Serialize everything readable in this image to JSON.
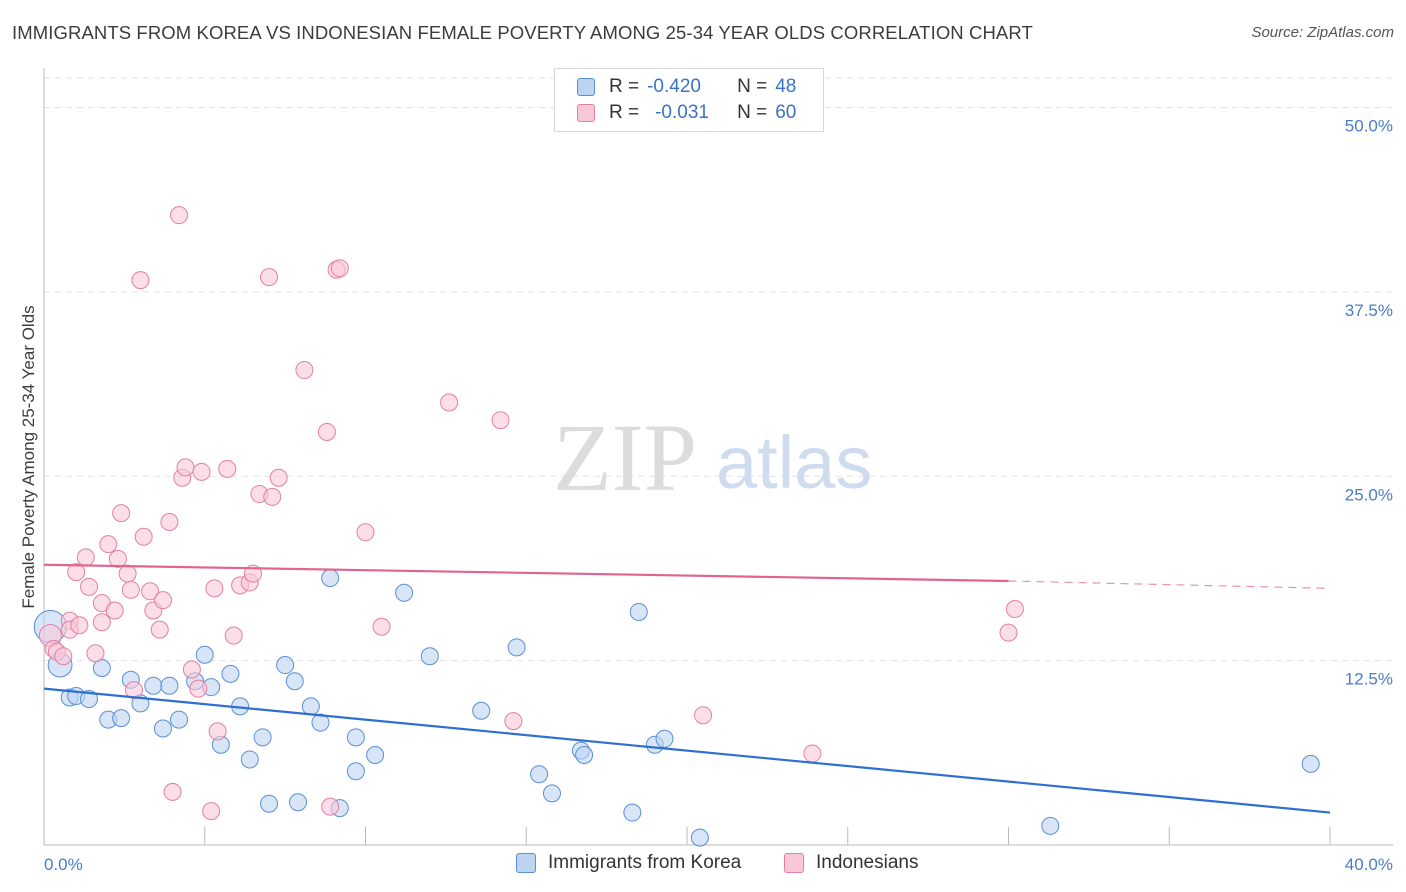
{
  "title": "IMMIGRANTS FROM KOREA VS INDONESIAN FEMALE POVERTY AMONG 25-34 YEAR OLDS CORRELATION CHART",
  "source": "Source: ZipAtlas.com",
  "watermark": {
    "zip": "ZIP",
    "atlas": "atlas"
  },
  "colors": {
    "blue_fill": "#bcd3f2",
    "blue_stroke": "#5a8fd6",
    "blue_line": "#2f6fd0",
    "pink_fill": "#f8c8d8",
    "pink_stroke": "#e47fa3",
    "pink_line": "#e0648f",
    "tick_text": "#4a7cc7",
    "grid": "#e2e2e2"
  },
  "legend": {
    "rows": [
      {
        "r_label": "R =",
        "r_value": "-0.420",
        "n_label": "N =",
        "n_value": "48"
      },
      {
        "r_label": "R =",
        "r_value": "-0.031",
        "n_label": "N =",
        "n_value": "60"
      }
    ]
  },
  "chart_data": {
    "type": "scatter",
    "title": "IMMIGRANTS FROM KOREA VS INDONESIAN FEMALE POVERTY AMONG 25-34 YEAR OLDS CORRELATION CHART",
    "xlabel": "",
    "ylabel": "Female Poverty Among 25-34 Year Olds",
    "xlim": [
      0,
      40
    ],
    "ylim": [
      0,
      52
    ],
    "x_tick_labels": [
      "0.0%",
      "40.0%"
    ],
    "y_ticks": [
      12.5,
      25.0,
      37.5,
      50.0
    ],
    "y_tick_labels": [
      "12.5%",
      "25.0%",
      "37.5%",
      "50.0%"
    ],
    "grid": "horizontal dashed",
    "series": [
      {
        "name": "Immigrants from Korea",
        "color": "blue",
        "r": -0.42,
        "n": 48,
        "trend": {
          "x0": 0,
          "y0": 10.6,
          "x1": 40,
          "y1": 2.2
        },
        "points": [
          [
            0.2,
            14.8,
            1.9
          ],
          [
            0.5,
            12.2,
            1.4
          ],
          [
            0.8,
            10.0,
            1
          ],
          [
            1.0,
            10.1,
            1
          ],
          [
            1.4,
            9.9,
            1
          ],
          [
            1.8,
            12.0,
            1
          ],
          [
            2.0,
            8.5,
            1
          ],
          [
            2.4,
            8.6,
            1
          ],
          [
            2.7,
            11.2,
            1
          ],
          [
            3.0,
            9.6,
            1
          ],
          [
            3.4,
            10.8,
            1
          ],
          [
            3.7,
            7.9,
            1
          ],
          [
            3.9,
            10.8,
            1
          ],
          [
            4.2,
            8.5,
            1
          ],
          [
            4.7,
            11.1,
            1
          ],
          [
            5.0,
            12.9,
            1
          ],
          [
            5.2,
            10.7,
            1
          ],
          [
            5.5,
            6.8,
            1
          ],
          [
            5.8,
            11.6,
            1
          ],
          [
            6.1,
            9.4,
            1
          ],
          [
            6.4,
            5.8,
            1
          ],
          [
            6.8,
            7.3,
            1
          ],
          [
            7.0,
            2.8,
            1
          ],
          [
            7.5,
            12.2,
            1
          ],
          [
            7.8,
            11.1,
            1
          ],
          [
            7.9,
            2.9,
            1
          ],
          [
            8.3,
            9.4,
            1
          ],
          [
            8.6,
            8.3,
            1
          ],
          [
            8.9,
            18.1,
            1
          ],
          [
            9.2,
            2.5,
            1
          ],
          [
            9.7,
            7.3,
            1
          ],
          [
            9.7,
            5.0,
            1
          ],
          [
            10.3,
            6.1,
            1
          ],
          [
            11.2,
            17.1,
            1
          ],
          [
            12.0,
            12.8,
            1
          ],
          [
            13.6,
            9.1,
            1
          ],
          [
            14.7,
            13.4,
            1
          ],
          [
            15.4,
            4.8,
            1
          ],
          [
            15.8,
            3.5,
            1
          ],
          [
            16.7,
            6.4,
            1
          ],
          [
            16.8,
            6.1,
            1
          ],
          [
            18.3,
            2.2,
            1
          ],
          [
            18.5,
            15.8,
            1
          ],
          [
            19.0,
            6.8,
            1
          ],
          [
            19.3,
            7.2,
            1
          ],
          [
            20.4,
            0.5,
            1
          ],
          [
            31.3,
            1.3,
            1
          ],
          [
            39.4,
            5.5,
            1
          ]
        ]
      },
      {
        "name": "Indonesians",
        "color": "pink",
        "r": -0.031,
        "n": 60,
        "trend": {
          "x0": 0,
          "y0": 19.0,
          "x1": 30,
          "y1": 17.9,
          "dash_x1": 40,
          "dash_y1": 17.4
        },
        "points": [
          [
            0.2,
            14.2,
            1.3
          ],
          [
            0.3,
            13.3,
            1
          ],
          [
            0.4,
            13.1,
            1
          ],
          [
            0.6,
            12.8,
            1
          ],
          [
            0.8,
            15.2,
            1
          ],
          [
            0.8,
            14.6,
            1
          ],
          [
            1.0,
            18.5,
            1
          ],
          [
            1.1,
            14.9,
            1
          ],
          [
            1.3,
            19.5,
            1
          ],
          [
            1.4,
            17.5,
            1
          ],
          [
            1.6,
            13.0,
            1
          ],
          [
            1.8,
            16.4,
            1
          ],
          [
            1.8,
            15.1,
            1
          ],
          [
            2.0,
            20.4,
            1
          ],
          [
            2.2,
            15.9,
            1
          ],
          [
            2.3,
            19.4,
            1
          ],
          [
            2.4,
            22.5,
            1
          ],
          [
            2.6,
            18.4,
            1
          ],
          [
            2.7,
            17.3,
            1
          ],
          [
            2.8,
            10.5,
            1
          ],
          [
            3.0,
            38.3,
            1
          ],
          [
            3.1,
            20.9,
            1
          ],
          [
            3.3,
            17.2,
            1
          ],
          [
            3.4,
            15.9,
            1
          ],
          [
            3.6,
            14.6,
            1
          ],
          [
            3.7,
            16.6,
            1
          ],
          [
            3.9,
            21.9,
            1
          ],
          [
            4.0,
            3.6,
            1
          ],
          [
            4.2,
            42.7,
            1
          ],
          [
            4.3,
            24.9,
            1
          ],
          [
            4.4,
            25.6,
            1
          ],
          [
            4.6,
            11.9,
            1
          ],
          [
            4.8,
            10.6,
            1
          ],
          [
            4.9,
            25.3,
            1
          ],
          [
            5.2,
            2.3,
            1
          ],
          [
            5.3,
            17.4,
            1
          ],
          [
            5.4,
            7.7,
            1
          ],
          [
            5.7,
            25.5,
            1
          ],
          [
            5.9,
            14.2,
            1
          ],
          [
            6.1,
            17.6,
            1
          ],
          [
            6.4,
            17.8,
            1
          ],
          [
            6.5,
            18.4,
            1
          ],
          [
            6.7,
            23.8,
            1
          ],
          [
            7.0,
            38.5,
            1
          ],
          [
            7.1,
            23.6,
            1
          ],
          [
            7.3,
            24.9,
            1
          ],
          [
            8.1,
            32.2,
            1
          ],
          [
            8.8,
            28.0,
            1
          ],
          [
            8.9,
            2.6,
            1
          ],
          [
            9.1,
            39.0,
            1
          ],
          [
            9.2,
            39.1,
            1
          ],
          [
            10.0,
            21.2,
            1
          ],
          [
            10.5,
            14.8,
            1
          ],
          [
            12.6,
            30.0,
            1
          ],
          [
            14.2,
            28.8,
            1
          ],
          [
            14.6,
            8.4,
            1
          ],
          [
            20.5,
            8.8,
            1
          ],
          [
            23.9,
            6.2,
            1
          ],
          [
            30.0,
            14.4,
            1
          ],
          [
            30.2,
            16.0,
            1
          ]
        ]
      }
    ]
  },
  "bottom_legend": {
    "items": [
      "Immigrants from Korea",
      "Indonesians"
    ]
  }
}
